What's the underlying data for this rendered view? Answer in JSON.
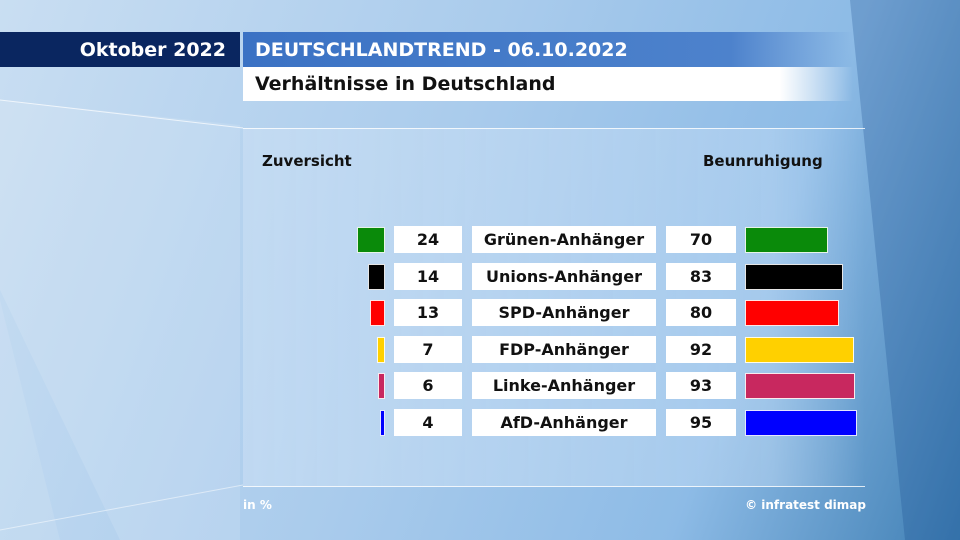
{
  "header": {
    "date_label": "Oktober 2022",
    "title": "DEUTSCHLANDTREND - 06.10.2022",
    "subtitle": "Verhältnisse in Deutschland"
  },
  "chart_data": {
    "type": "bar",
    "title": "Verhältnisse in Deutschland",
    "left_label": "Zuversicht",
    "right_label": "Beunruhigung",
    "unit": "in %",
    "categories": [
      "Grünen-Anhänger",
      "Unions-Anhänger",
      "SPD-Anhänger",
      "FDP-Anhänger",
      "Linke-Anhänger",
      "AfD-Anhänger"
    ],
    "series": [
      {
        "name": "Zuversicht",
        "values": [
          24,
          14,
          13,
          7,
          6,
          4
        ]
      },
      {
        "name": "Beunruhigung",
        "values": [
          70,
          83,
          80,
          92,
          93,
          95
        ]
      }
    ],
    "colors": [
      "#0a8a0a",
      "#000000",
      "#ff0000",
      "#ffd000",
      "#c8285f",
      "#0000ff"
    ],
    "xlim": [
      0,
      100
    ]
  },
  "footer": {
    "unit_label": "in %",
    "source": "© infratest dimap"
  }
}
